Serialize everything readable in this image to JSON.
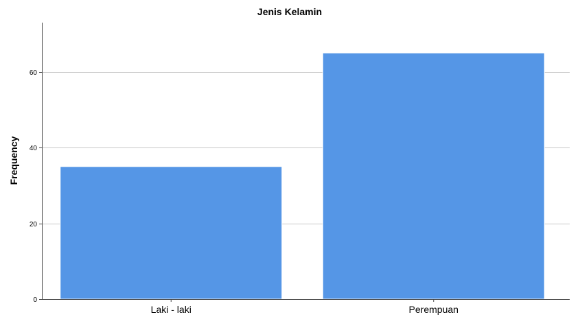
{
  "chart_data": {
    "type": "bar",
    "title": "Jenis Kelamin",
    "xlabel": "",
    "ylabel": "Frequency",
    "categories": [
      "Laki - laki",
      "Perempuan"
    ],
    "values": [
      35,
      65
    ],
    "ylim": [
      0,
      73
    ],
    "yticks": [
      0,
      20,
      40,
      60
    ],
    "grid": true,
    "bar_color": "#5596e6",
    "bar_edge_color": "#ffffff"
  }
}
